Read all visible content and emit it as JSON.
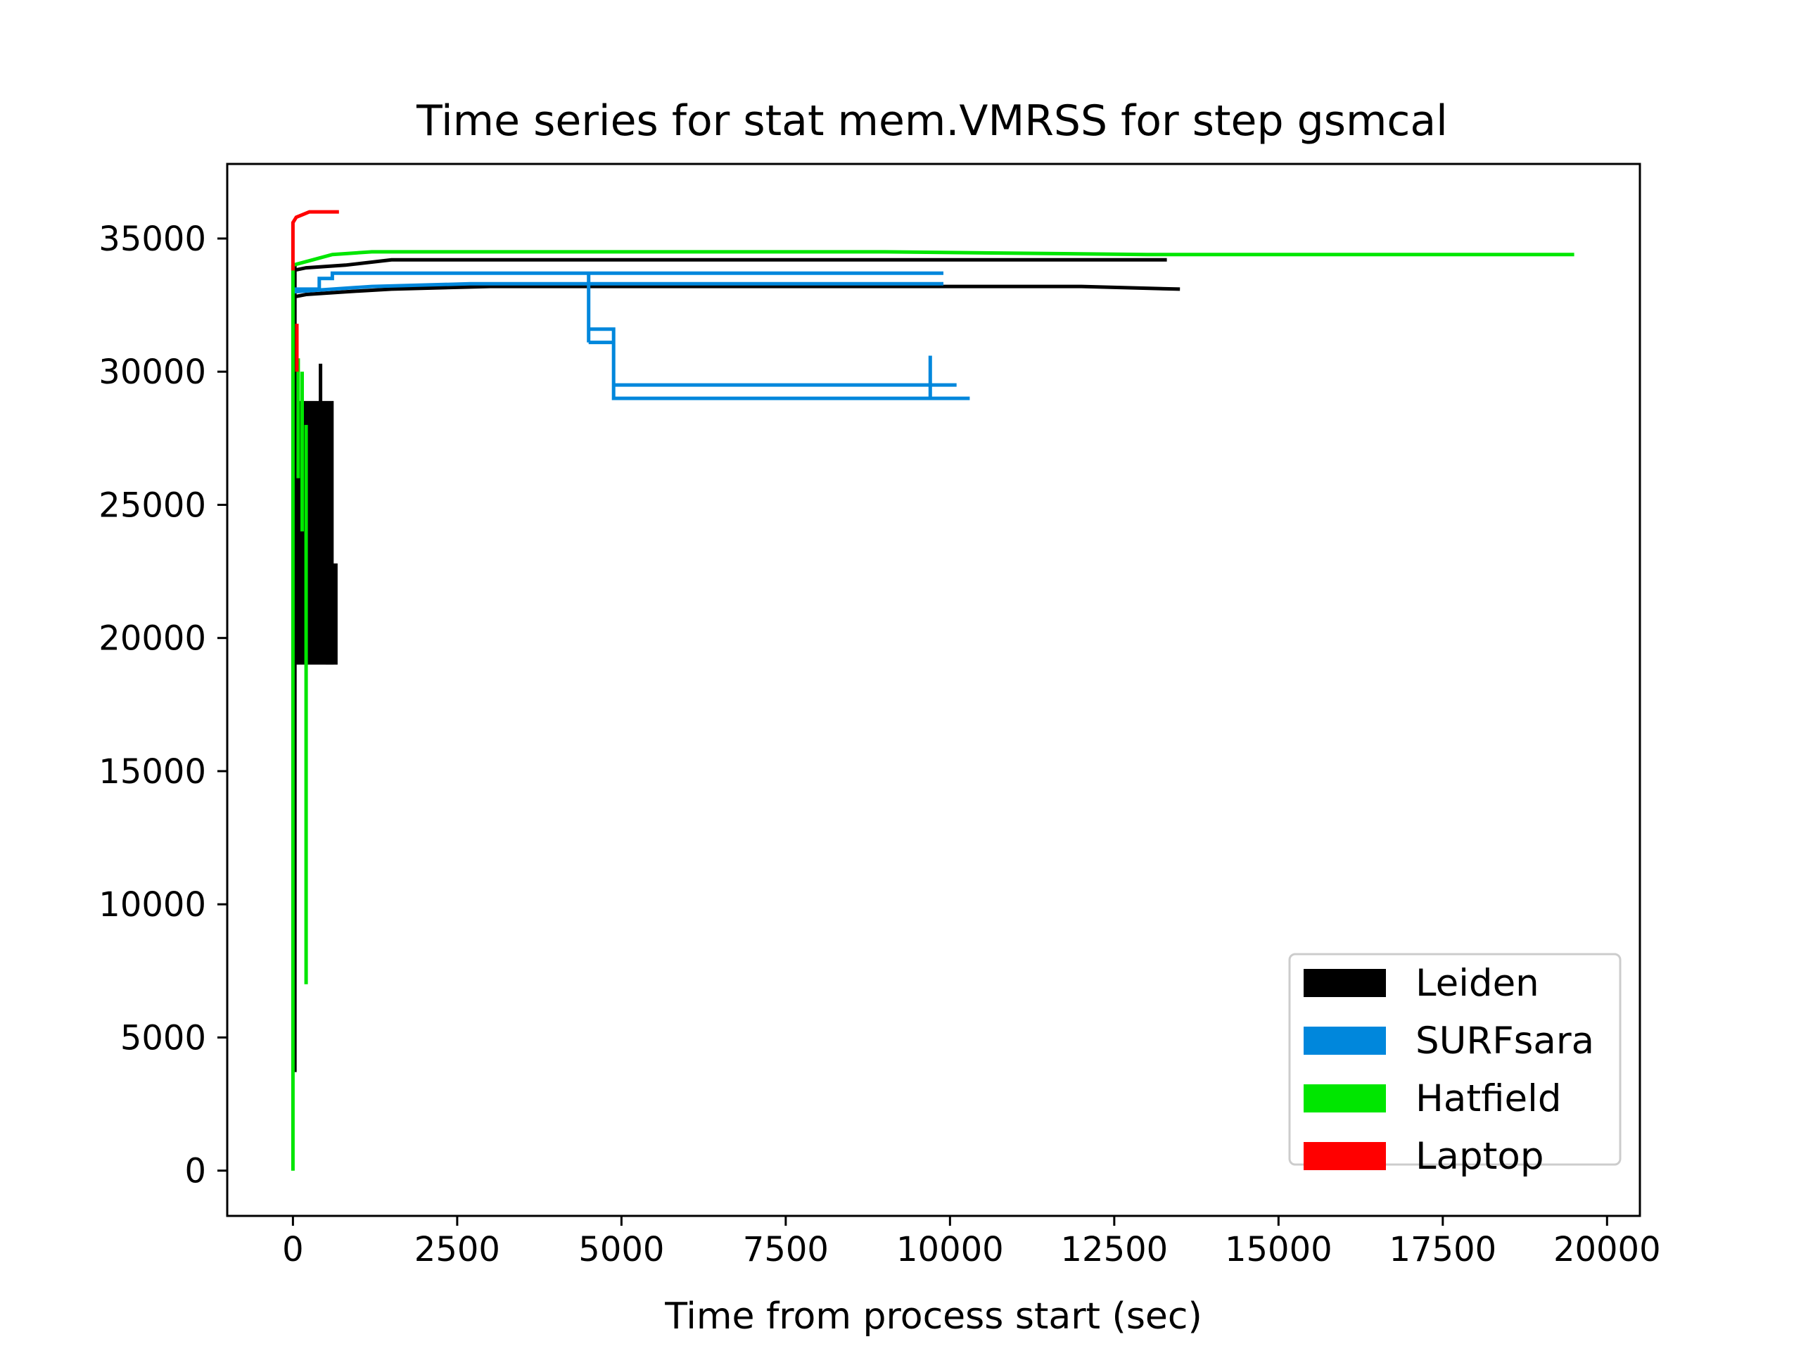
{
  "chart_data": {
    "type": "line",
    "title": "Time series for stat mem.VMRSS for step gsmcal",
    "xlabel": "Time from process start (sec)",
    "ylabel": "",
    "xlim": [
      -1000,
      20500
    ],
    "ylim": [
      -1700,
      37800
    ],
    "xticks": [
      "0",
      "2500",
      "5000",
      "7500",
      "10000",
      "12500",
      "15000",
      "17500",
      "20000"
    ],
    "yticks": [
      "0",
      "5000",
      "10000",
      "15000",
      "20000",
      "25000",
      "30000",
      "35000"
    ],
    "grid": false,
    "legend_position": "lower-right",
    "series": [
      {
        "name": "Leiden",
        "color": "#000000",
        "lines": [
          {
            "x": [
              0,
              200,
              800,
              1500,
              3000,
              6000,
              9000,
              12000,
              13300
            ],
            "y": [
              33800,
              33900,
              34000,
              34200,
              34200,
              34200,
              34200,
              34200,
              34200
            ]
          },
          {
            "x": [
              0,
              200,
              800,
              1500,
              3000,
              6000,
              9000,
              12000,
              13500
            ],
            "y": [
              32800,
              32900,
              33000,
              33100,
              33200,
              33200,
              33200,
              33200,
              33100
            ]
          },
          {
            "x": [
              30,
              30
            ],
            "y": [
              3700,
              34000
            ]
          },
          {
            "x": [
              420,
              420
            ],
            "y": [
              22000,
              30300
            ]
          }
        ],
        "blocks": [
          {
            "x0": 0,
            "x1": 620,
            "y0": 19000,
            "y1": 28900
          },
          {
            "x0": 500,
            "x1": 680,
            "y0": 19000,
            "y1": 22800
          }
        ]
      },
      {
        "name": "SURFsara",
        "color": "#0087dc",
        "lines": [
          {
            "x": [
              0,
              400,
              400,
              600,
              600,
              2700,
              2700,
              4500,
              9900
            ],
            "y": [
              33100,
              33100,
              33500,
              33500,
              33700,
              33700,
              33700,
              33700,
              33700
            ]
          },
          {
            "x": [
              0,
              1200,
              2700,
              5000,
              9900
            ],
            "y": [
              33000,
              33200,
              33300,
              33300,
              33300
            ]
          },
          {
            "x": [
              4500,
              4500,
              4500,
              4500,
              4880,
              4880,
              4880,
              4880,
              4880,
              10300
            ],
            "y": [
              33700,
              31100,
              31100,
              31600,
              31600,
              29000,
              29000,
              29000,
              29000,
              29000
            ]
          },
          {
            "x": [
              4500,
              4880
            ],
            "y": [
              31100,
              31100
            ]
          },
          {
            "x": [
              4880,
              4880,
              10100
            ],
            "y": [
              29500,
              29500,
              29500
            ]
          },
          {
            "x": [
              9700,
              9700
            ],
            "y": [
              29000,
              30600
            ]
          }
        ]
      },
      {
        "name": "Hatfield",
        "color": "#00e600",
        "lines": [
          {
            "x": [
              0,
              0
            ],
            "y": [
              0,
              34000
            ]
          },
          {
            "x": [
              0,
              300,
              600,
              1200,
              3000,
              6000,
              9000,
              13000,
              15500,
              19500
            ],
            "y": [
              34000,
              34200,
              34400,
              34500,
              34500,
              34500,
              34500,
              34400,
              34400,
              34400
            ]
          },
          {
            "x": [
              200,
              200
            ],
            "y": [
              7000,
              28000
            ]
          },
          {
            "x": [
              80,
              80
            ],
            "y": [
              26000,
              30500
            ]
          },
          {
            "x": [
              140,
              140
            ],
            "y": [
              24000,
              30000
            ]
          }
        ]
      },
      {
        "name": "Laptop",
        "color": "#ff0000",
        "lines": [
          {
            "x": [
              0,
              0,
              50,
              150,
              250,
              700
            ],
            "y": [
              33800,
              35600,
              35800,
              35900,
              36000,
              36000
            ]
          },
          {
            "x": [
              60,
              60
            ],
            "y": [
              30000,
              31800
            ]
          }
        ]
      }
    ]
  }
}
